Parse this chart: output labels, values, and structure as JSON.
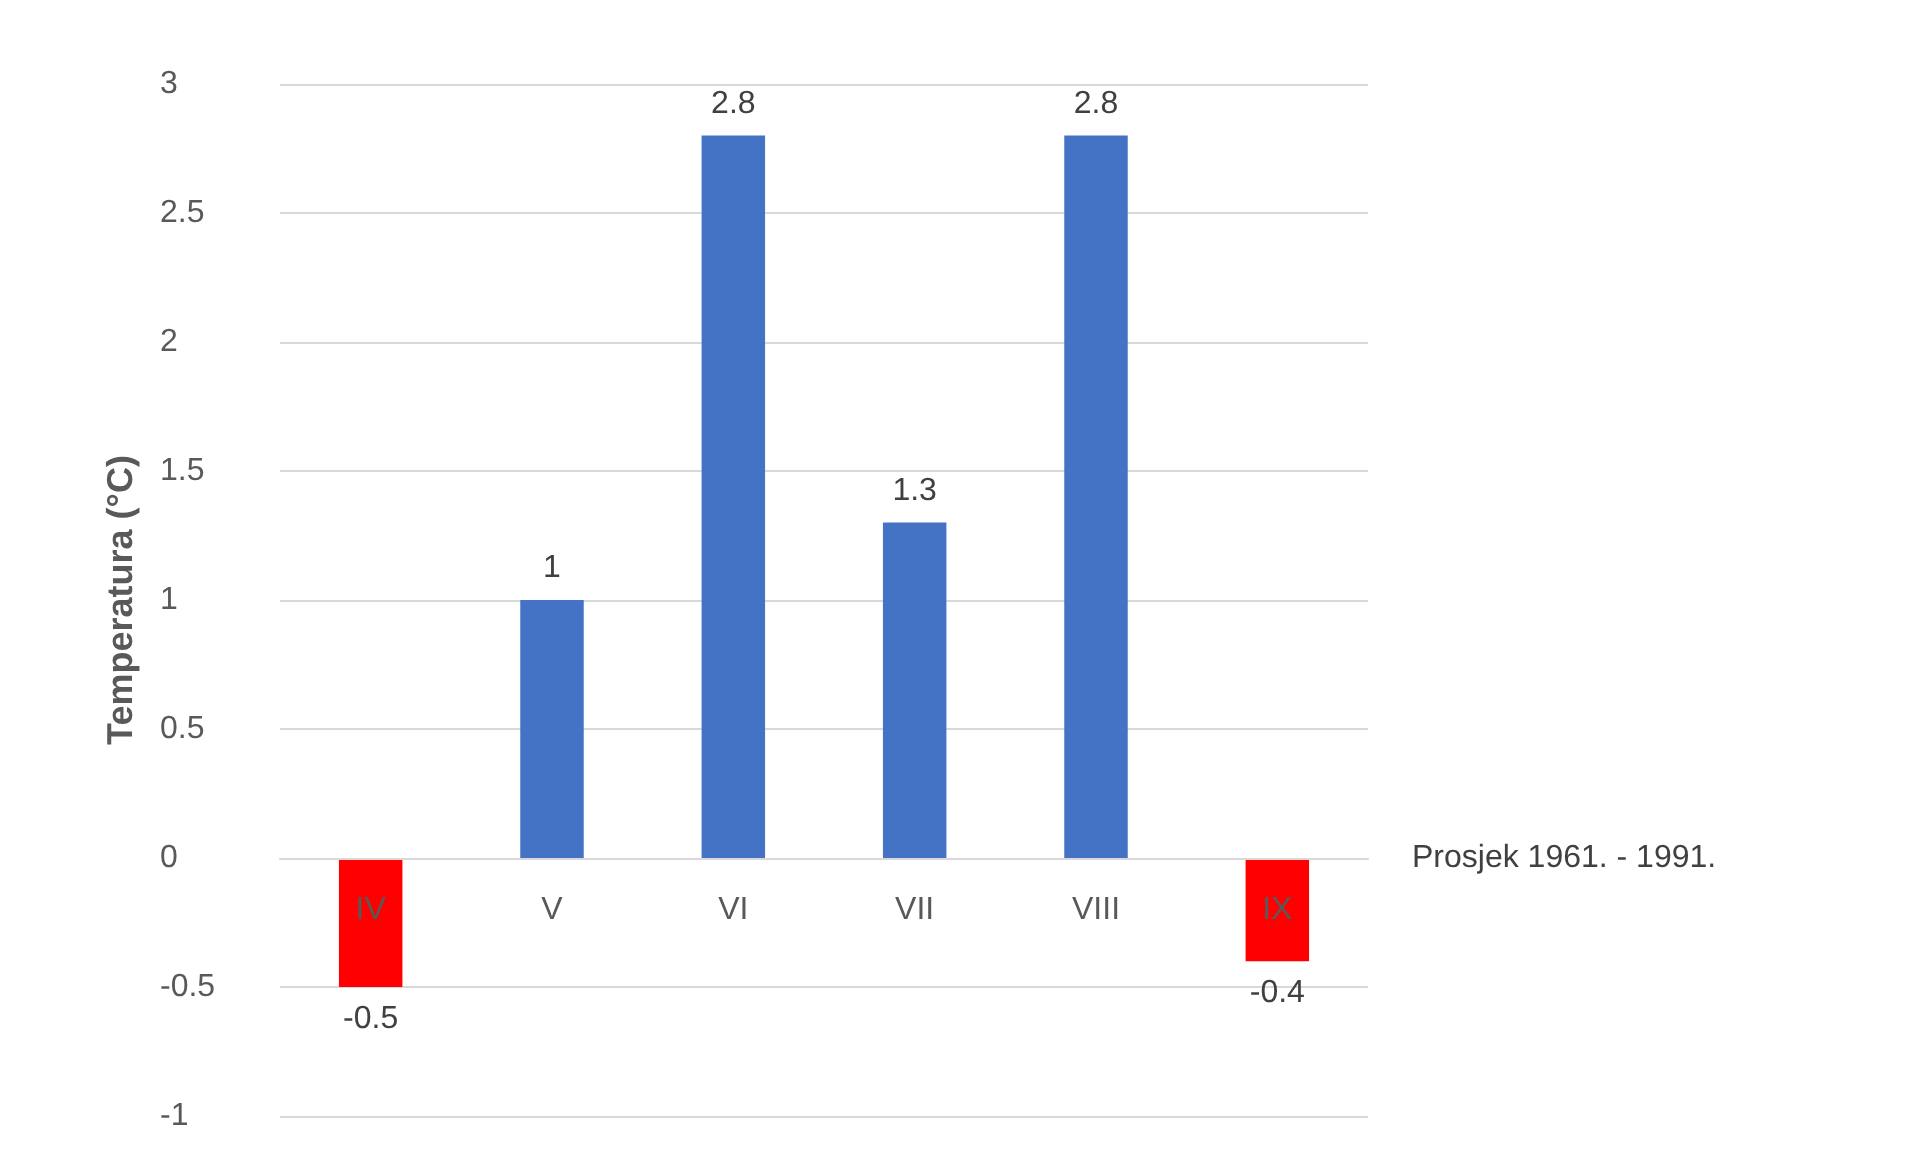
{
  "chart_data": {
    "type": "bar",
    "ylabel": "Temperatura (°C)",
    "xlabel": "Prosjek 1961. - 1991.",
    "categories": [
      "IV",
      "V",
      "VI",
      "VII",
      "VIII",
      "IX"
    ],
    "values": [
      -0.5,
      1,
      2.8,
      1.3,
      2.8,
      -0.4
    ],
    "colors": [
      "#ff0000",
      "#4472c4",
      "#4472c4",
      "#4472c4",
      "#4472c4",
      "#ff0000"
    ],
    "ylim": [
      -1,
      3
    ],
    "yticks": [
      -1,
      -0.5,
      0,
      0.5,
      1,
      1.5,
      2,
      2.5,
      3
    ],
    "grid": "y",
    "data_labels": true
  }
}
